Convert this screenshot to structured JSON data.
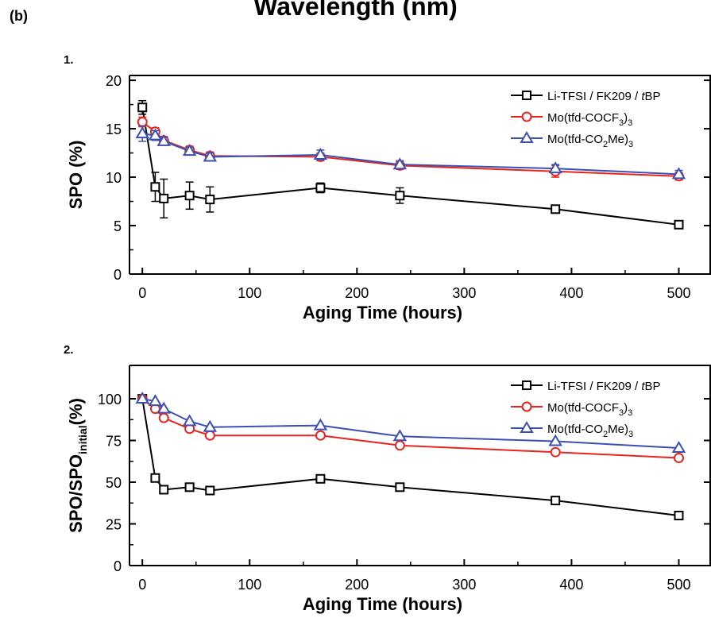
{
  "figure": {
    "title": "Wavelength (nm)",
    "panel_label": "(b)"
  },
  "chart_data": [
    {
      "type": "line",
      "label": "1.",
      "xlabel": "Aging Time (hours)",
      "ylabel": "SPO (%)",
      "xlim": [
        -12,
        530
      ],
      "ylim": [
        0,
        20.5
      ],
      "xticks": [
        0,
        100,
        200,
        300,
        400,
        500
      ],
      "yticks": [
        0,
        5,
        10,
        15,
        20
      ],
      "legend_position": "top-right",
      "series": [
        {
          "name": "Li-TFSI / FK209 / tBP",
          "color": "#000000",
          "marker": "square",
          "x": [
            0,
            12,
            20,
            44,
            63,
            166,
            240,
            385,
            500
          ],
          "y": [
            17.2,
            9.0,
            7.8,
            8.1,
            7.7,
            8.9,
            8.1,
            6.7,
            5.1
          ],
          "err": [
            0.7,
            1.5,
            2.0,
            1.4,
            1.3,
            0.5,
            0.8,
            0.3,
            0.3
          ]
        },
        {
          "name": "Mo(tfd-COCF3)3",
          "color": "#e8241c",
          "marker": "circle",
          "x": [
            0,
            12,
            20,
            44,
            63,
            166,
            240,
            385,
            500
          ],
          "y": [
            15.7,
            14.7,
            13.8,
            12.8,
            12.2,
            12.1,
            11.2,
            10.6,
            10.1
          ],
          "err": [
            0.5,
            0.4,
            0.4,
            0.4,
            0.4,
            0.4,
            0.4,
            0.6,
            0.4
          ]
        },
        {
          "name": "Mo(tfd-CO2Me)3",
          "color": "#3c4fb4",
          "marker": "triangle",
          "x": [
            0,
            12,
            20,
            44,
            63,
            166,
            240,
            385,
            500
          ],
          "y": [
            14.5,
            14.3,
            13.7,
            12.7,
            12.1,
            12.3,
            11.3,
            10.9,
            10.3
          ],
          "err": [
            0.8,
            0.5,
            0.4,
            0.4,
            0.4,
            0.5,
            0.4,
            0.4,
            0.4
          ]
        }
      ]
    },
    {
      "type": "line",
      "label": "2.",
      "xlabel": "Aging Time (hours)",
      "ylabel": "SPO/SPO",
      "ylabel_sub": "initial",
      "ylabel_suffix": "(%)",
      "xlim": [
        -12,
        530
      ],
      "ylim": [
        0,
        120
      ],
      "xticks": [
        0,
        100,
        200,
        300,
        400,
        500
      ],
      "yticks": [
        0,
        25,
        50,
        75,
        100
      ],
      "legend_position": "top-right",
      "series": [
        {
          "name": "Li-TFSI / FK209 / tBP",
          "color": "#000000",
          "marker": "square",
          "x": [
            0,
            12,
            20,
            44,
            63,
            166,
            240,
            385,
            500
          ],
          "y": [
            100,
            52.5,
            45.5,
            47,
            45,
            52,
            47,
            39,
            30
          ]
        },
        {
          "name": "Mo(tfd-COCF3)3",
          "color": "#e8241c",
          "marker": "circle",
          "x": [
            0,
            12,
            20,
            44,
            63,
            166,
            240,
            385,
            500
          ],
          "y": [
            100,
            94,
            88.5,
            82,
            78,
            78,
            72,
            68,
            64.5
          ]
        },
        {
          "name": "Mo(tfd-CO2Me)3",
          "color": "#3c4fb4",
          "marker": "triangle",
          "x": [
            0,
            12,
            20,
            44,
            63,
            166,
            240,
            385,
            500
          ],
          "y": [
            100,
            98.5,
            94,
            86.5,
            83,
            84,
            77.5,
            74.5,
            70.5
          ]
        }
      ]
    }
  ]
}
